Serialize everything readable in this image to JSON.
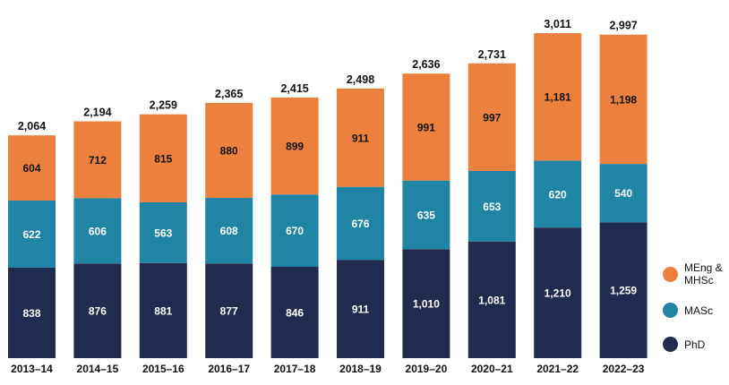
{
  "chart_data": {
    "type": "bar",
    "stacked": true,
    "categories": [
      "2013–14",
      "2014–15",
      "2015–16",
      "2016–17",
      "2017–18",
      "2018–19",
      "2019–20",
      "2020–21",
      "2021–22",
      "2022–23"
    ],
    "series": [
      {
        "name": "PhD",
        "color": "#212a4f",
        "label_color": "#ffffff",
        "values": [
          838,
          876,
          881,
          877,
          846,
          911,
          1010,
          1081,
          1210,
          1259
        ],
        "labels": [
          "838",
          "876",
          "881",
          "877",
          "846",
          "911",
          "1,010",
          "1,081",
          "1,210",
          "1,259"
        ]
      },
      {
        "name": "MASc",
        "color": "#2084a4",
        "label_color": "#ffffff",
        "values": [
          622,
          606,
          563,
          608,
          670,
          676,
          635,
          653,
          620,
          540
        ],
        "labels": [
          "622",
          "606",
          "563",
          "608",
          "670",
          "676",
          "635",
          "653",
          "620",
          "540"
        ]
      },
      {
        "name": "MEng & MHSc",
        "color": "#ec803d",
        "label_color": "#111111",
        "values": [
          604,
          712,
          815,
          880,
          899,
          911,
          991,
          997,
          1181,
          1198
        ],
        "labels": [
          "604",
          "712",
          "815",
          "880",
          "899",
          "911",
          "991",
          "997",
          "1,181",
          "1,198"
        ]
      }
    ],
    "totals": [
      2064,
      2194,
      2259,
      2365,
      2415,
      2498,
      2636,
      2731,
      3011,
      2997
    ],
    "total_labels": [
      "2,064",
      "2,194",
      "2,259",
      "2,365",
      "2,415",
      "2,498",
      "2,636",
      "2,731",
      "3,011",
      "2,997"
    ],
    "ylim": [
      0,
      3011
    ],
    "title": "",
    "xlabel": "",
    "ylabel": "",
    "grid": false,
    "legend_position": "right"
  },
  "legend": {
    "items": [
      {
        "label": "MEng & MHSc",
        "color": "#ec803d"
      },
      {
        "label": "MASc",
        "color": "#2084a4"
      },
      {
        "label": "PhD",
        "color": "#212a4f"
      }
    ]
  }
}
